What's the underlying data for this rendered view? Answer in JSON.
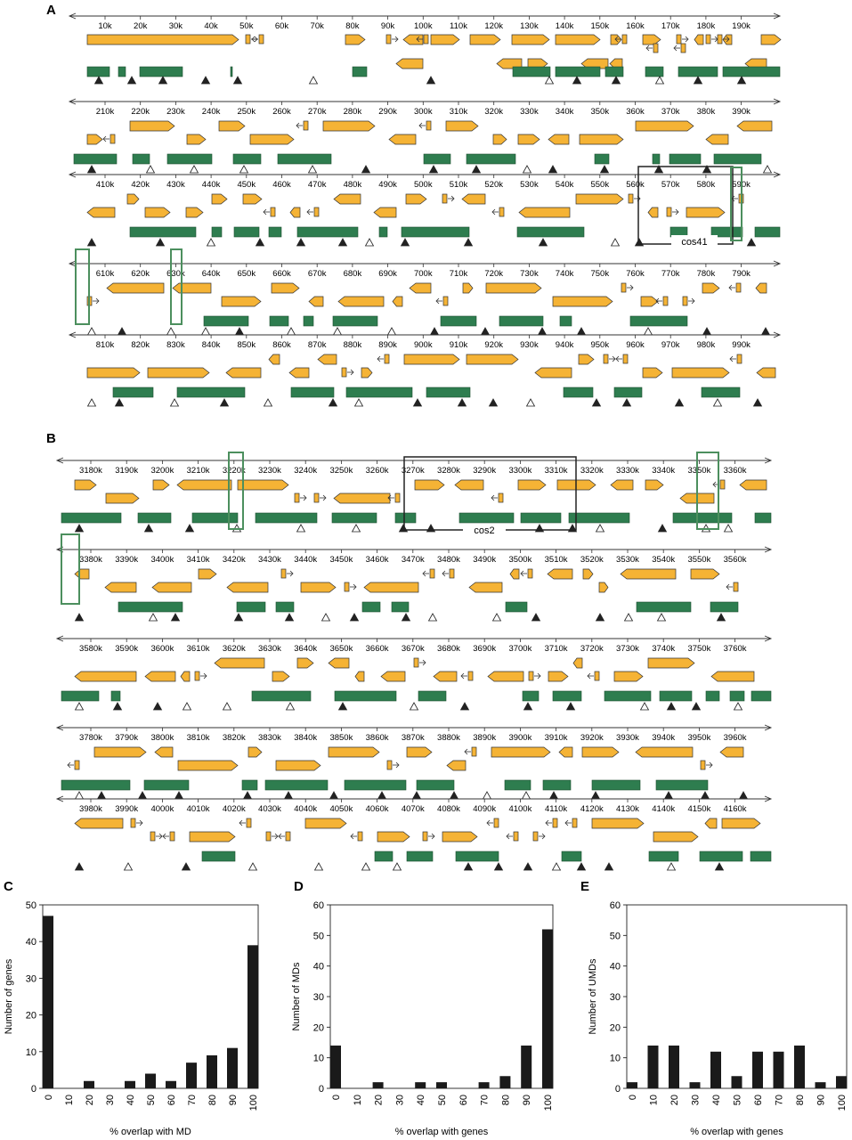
{
  "panels": {
    "A": {
      "letter": "A",
      "rows": [
        {
          "ticks": [
            "10k",
            "20k",
            "30k",
            "40k",
            "50k",
            "60k",
            "70k",
            "80k",
            "90k",
            "100k",
            "110k",
            "120k",
            "130k",
            "140k",
            "150k",
            "160k",
            "170k",
            "180k",
            "190k"
          ]
        },
        {
          "ticks": [
            "210k",
            "220k",
            "230k",
            "240k",
            "250k",
            "260k",
            "270k",
            "280k",
            "290k",
            "300k",
            "310k",
            "320k",
            "330k",
            "340k",
            "350k",
            "360k",
            "370k",
            "380k",
            "390k"
          ]
        },
        {
          "ticks": [
            "410k",
            "420k",
            "430k",
            "440k",
            "450k",
            "460k",
            "470k",
            "480k",
            "490k",
            "500k",
            "510k",
            "520k",
            "530k",
            "540k",
            "550k",
            "560k",
            "570k",
            "580k",
            "590k"
          ]
        },
        {
          "ticks": [
            "610k",
            "620k",
            "630k",
            "640k",
            "650k",
            "660k",
            "670k",
            "680k",
            "690k",
            "700k",
            "710k",
            "720k",
            "730k",
            "740k",
            "750k",
            "760k",
            "770k",
            "780k",
            "790k"
          ]
        },
        {
          "ticks": [
            "810k",
            "820k",
            "830k",
            "840k",
            "850k",
            "860k",
            "870k",
            "880k",
            "890k",
            "900k",
            "910k",
            "920k",
            "930k",
            "940k",
            "950k",
            "960k",
            "970k",
            "980k",
            "990k"
          ]
        }
      ],
      "box_label": "cos41"
    },
    "B": {
      "letter": "B",
      "rows": [
        {
          "ticks": [
            "3180k",
            "3190k",
            "3200k",
            "3210k",
            "3220k",
            "3230k",
            "3240k",
            "3250k",
            "3260k",
            "3270k",
            "3280k",
            "3290k",
            "3300k",
            "3310k",
            "3320k",
            "3330k",
            "3340k",
            "3350k",
            "3360k"
          ]
        },
        {
          "ticks": [
            "3380k",
            "3390k",
            "3400k",
            "3410k",
            "3420k",
            "3430k",
            "3440k",
            "3450k",
            "3460k",
            "3470k",
            "3480k",
            "3490k",
            "3500k",
            "3510k",
            "3520k",
            "3530k",
            "3540k",
            "3550k",
            "3560k"
          ]
        },
        {
          "ticks": [
            "3580k",
            "3590k",
            "3600k",
            "3610k",
            "3620k",
            "3630k",
            "3640k",
            "3650k",
            "3660k",
            "3670k",
            "3680k",
            "3690k",
            "3700k",
            "3710k",
            "3720k",
            "3730k",
            "3740k",
            "3750k",
            "3760k"
          ]
        },
        {
          "ticks": [
            "3780k",
            "3790k",
            "3800k",
            "3810k",
            "3820k",
            "3830k",
            "3840k",
            "3850k",
            "3860k",
            "3870k",
            "3880k",
            "3890k",
            "3900k",
            "3910k",
            "3920k",
            "3930k",
            "3940k",
            "3950k",
            "3960k"
          ]
        },
        {
          "ticks": [
            "3980k",
            "3990k",
            "4000k",
            "4010k",
            "4020k",
            "4030k",
            "4040k",
            "4050k",
            "4060k",
            "4070k",
            "4080k",
            "4090k",
            "4100k",
            "4110k",
            "4120k",
            "4130k",
            "4140k",
            "4150k",
            "4160k"
          ]
        }
      ],
      "box_label": "cos2"
    }
  },
  "colors": {
    "gene_fill": "#F5B335",
    "md_fill": "#2E7D4F",
    "green_box": "#4C8F5E",
    "black_box": "#222222",
    "bar_fill": "#1a1a1a"
  },
  "chart_data": [
    {
      "panel": "C",
      "type": "bar",
      "categories": [
        "0",
        "10",
        "20",
        "30",
        "40",
        "50",
        "60",
        "70",
        "80",
        "90",
        "100"
      ],
      "values": [
        47,
        0,
        2,
        0,
        2,
        4,
        2,
        7,
        9,
        11,
        39
      ],
      "xlabel": "% overlap with MD",
      "ylabel": "Number of genes",
      "ylim": [
        0,
        50
      ],
      "yticks": [
        "0",
        "10",
        "20",
        "30",
        "40",
        "50"
      ]
    },
    {
      "panel": "D",
      "type": "bar",
      "categories": [
        "0",
        "10",
        "20",
        "30",
        "40",
        "50",
        "60",
        "70",
        "80",
        "90",
        "100"
      ],
      "values": [
        14,
        0,
        2,
        0,
        2,
        2,
        0,
        2,
        4,
        14,
        52
      ],
      "xlabel": "% overlap with genes",
      "ylabel": "Number of MDs",
      "ylim": [
        0,
        60
      ],
      "yticks": [
        "0",
        "10",
        "20",
        "30",
        "40",
        "50",
        "60"
      ]
    },
    {
      "panel": "E",
      "type": "bar",
      "categories": [
        "0",
        "10",
        "20",
        "30",
        "40",
        "50",
        "60",
        "70",
        "80",
        "90",
        "100"
      ],
      "values": [
        2,
        14,
        14,
        2,
        12,
        4,
        12,
        12,
        14,
        2,
        4
      ],
      "xlabel": "% overlap with genes",
      "ylabel": "Number of UMDs",
      "ylim": [
        0,
        60
      ],
      "yticks": [
        "0",
        "10",
        "20",
        "30",
        "40",
        "50",
        "60"
      ]
    }
  ]
}
